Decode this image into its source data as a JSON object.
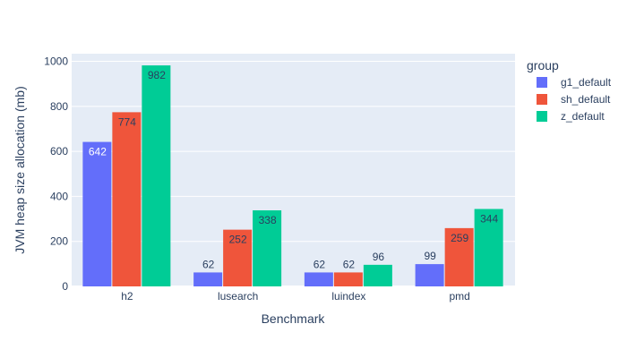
{
  "chart_data": {
    "type": "bar",
    "title": "",
    "xlabel": "Benchmark",
    "ylabel": "JVM heap size allocation (mb)",
    "categories": [
      "h2",
      "lusearch",
      "luindex",
      "pmd"
    ],
    "series": [
      {
        "name": "g1_default",
        "color": "#636efa",
        "values": [
          642,
          62,
          62,
          99
        ]
      },
      {
        "name": "sh_default",
        "color": "#ef553b",
        "values": [
          774,
          252,
          62,
          259
        ]
      },
      {
        "name": "z_default",
        "color": "#00cc96",
        "values": [
          982,
          338,
          96,
          344
        ]
      }
    ],
    "ylim": [
      0,
      1034
    ],
    "yticks": [
      0,
      200,
      400,
      600,
      800,
      1000
    ],
    "grid": true,
    "legend": {
      "title": "group",
      "placement": "right"
    },
    "plot_background": "#e5ecf6"
  }
}
